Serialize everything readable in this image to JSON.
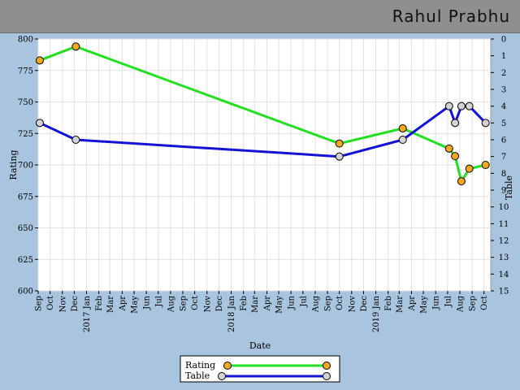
{
  "header": {
    "player_name": "Rahul Prabhu"
  },
  "chart_data": {
    "type": "line",
    "xlabel": "Date",
    "ylabel": "Rating",
    "y2label": "Table",
    "ylim": [
      600,
      800
    ],
    "y2lim": [
      0,
      15
    ],
    "x_ticks": [
      "Sep",
      "Oct",
      "Nov",
      "Dec",
      "2017 Jan",
      "Feb",
      "Mar",
      "Apr",
      "May",
      "Jun",
      "Jul",
      "Aug",
      "Sep",
      "Oct",
      "Nov",
      "Dec",
      "2018 Jan",
      "Feb",
      "Mar",
      "Apr",
      "May",
      "Jun",
      "Jul",
      "Aug",
      "Sep",
      "Oct",
      "Nov",
      "Dec",
      "2019 Jan",
      "Feb",
      "Mar",
      "Apr",
      "May",
      "Jun",
      "Jul",
      "Aug",
      "Sep",
      "Oct"
    ],
    "y_ticks": [
      600,
      625,
      650,
      675,
      700,
      725,
      750,
      775,
      800
    ],
    "y2_ticks": [
      0,
      1,
      2,
      3,
      4,
      5,
      6,
      7,
      8,
      9,
      10,
      11,
      12,
      13,
      14,
      15
    ],
    "grid": true,
    "legend_position": "bottom-center",
    "series": [
      {
        "name": "Rating",
        "axis": "left",
        "color": "#22e01f",
        "marker_color": "#f3a81e",
        "points": [
          {
            "x": "2016-09-05",
            "y": 783
          },
          {
            "x": "2016-12-05",
            "y": 794
          },
          {
            "x": "2018-10-01",
            "y": 717
          },
          {
            "x": "2019-03-10",
            "y": 729
          },
          {
            "x": "2019-07-05",
            "y": 713
          },
          {
            "x": "2019-07-20",
            "y": 707
          },
          {
            "x": "2019-08-05",
            "y": 687
          },
          {
            "x": "2019-08-25",
            "y": 697
          },
          {
            "x": "2019-10-05",
            "y": 700
          }
        ]
      },
      {
        "name": "Table",
        "axis": "right",
        "color": "#1313d6",
        "marker_color": "#d3d3d3",
        "points": [
          {
            "x": "2016-09-05",
            "y": 5
          },
          {
            "x": "2016-12-05",
            "y": 6
          },
          {
            "x": "2018-10-01",
            "y": 7
          },
          {
            "x": "2019-03-10",
            "y": 6
          },
          {
            "x": "2019-07-05",
            "y": 4
          },
          {
            "x": "2019-07-20",
            "y": 5
          },
          {
            "x": "2019-08-05",
            "y": 4
          },
          {
            "x": "2019-08-25",
            "y": 4
          },
          {
            "x": "2019-10-05",
            "y": 5
          }
        ]
      }
    ]
  }
}
